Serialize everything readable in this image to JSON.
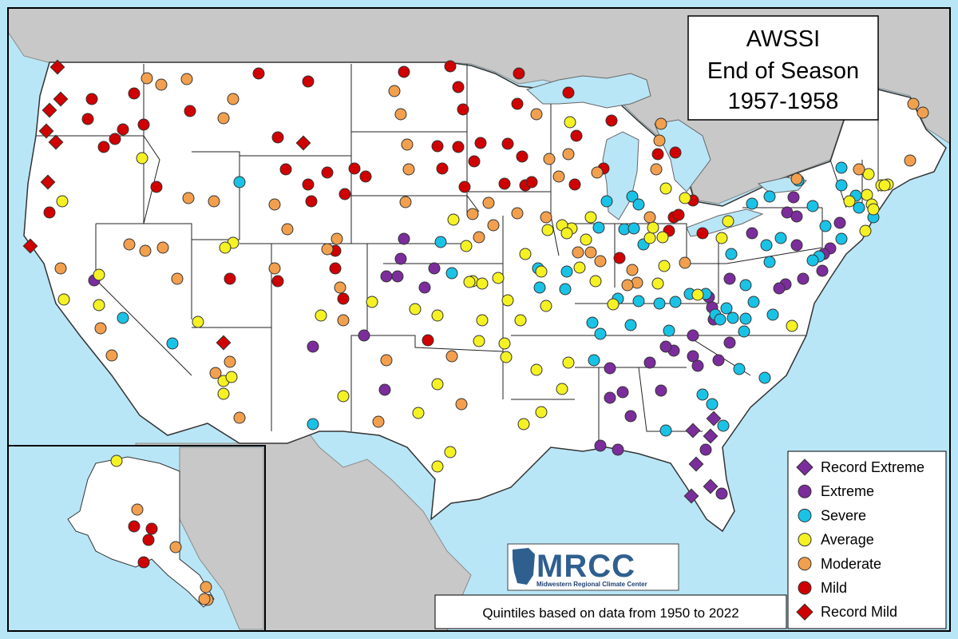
{
  "title": {
    "line1": "AWSSI",
    "line2": "End of Season",
    "line3": "1957-1958"
  },
  "legend": [
    {
      "label": "Record Extreme",
      "color": "#7b2d9c",
      "shape": "diamond"
    },
    {
      "label": "Extreme",
      "color": "#7b2d9c",
      "shape": "circle"
    },
    {
      "label": "Severe",
      "color": "#19c3e6",
      "shape": "circle"
    },
    {
      "label": "Average",
      "color": "#f5f224",
      "shape": "circle"
    },
    {
      "label": "Moderate",
      "color": "#f2a04e",
      "shape": "circle"
    },
    {
      "label": "Mild",
      "color": "#d00000",
      "shape": "circle"
    },
    {
      "label": "Record Mild",
      "color": "#d00000",
      "shape": "diamond"
    }
  ],
  "note": "Quintiles based on data from 1950 to 2022",
  "logo": {
    "name": "MRCC",
    "subtitle": "Midwestern Regional Climate Center"
  },
  "colors": {
    "ocean": "#b9e6f7",
    "land": "#ffffff",
    "foreign_land": "#c8c8c8",
    "lakes": "#b9e6f7"
  }
}
